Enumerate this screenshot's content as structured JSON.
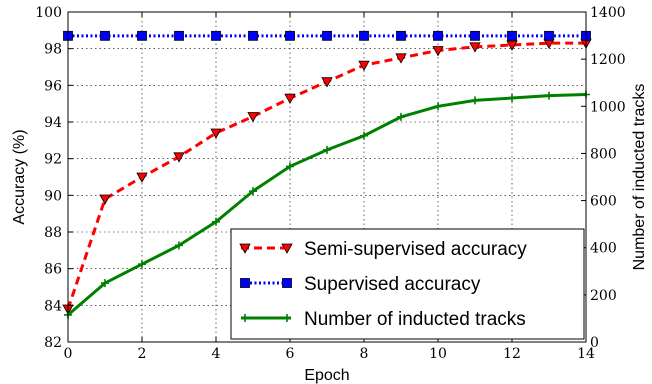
{
  "chart_data": {
    "type": "line",
    "xlabel": "Epoch",
    "ylabel_left": "Accuracy (%)",
    "ylabel_right": "Number of inducted tracks",
    "xlim": [
      0,
      14
    ],
    "ylim_left": [
      82,
      100
    ],
    "ylim_right": [
      0,
      1400
    ],
    "x_ticks": [
      0,
      2,
      4,
      6,
      8,
      10,
      12,
      14
    ],
    "y_left_ticks": [
      82,
      84,
      86,
      88,
      90,
      92,
      94,
      96,
      98,
      100
    ],
    "y_right_ticks": [
      0,
      200,
      400,
      600,
      800,
      1000,
      1200,
      1400
    ],
    "grid": true,
    "legend_position": "lower-right",
    "x": [
      0,
      1,
      2,
      3,
      4,
      5,
      6,
      7,
      8,
      9,
      10,
      11,
      12,
      13,
      14
    ],
    "series": [
      {
        "name": "Semi-supervised accuracy",
        "axis": "left",
        "color": "#ff0000",
        "marker": "triangle-down",
        "linestyle": "dashed",
        "values": [
          83.8,
          89.8,
          91.0,
          92.1,
          93.4,
          94.3,
          95.3,
          96.2,
          97.1,
          97.5,
          97.9,
          98.1,
          98.2,
          98.3,
          98.3
        ]
      },
      {
        "name": "Supervised accuracy",
        "axis": "left",
        "color": "#0000ff",
        "marker": "square",
        "linestyle": "dotted",
        "values": [
          98.7,
          98.7,
          98.7,
          98.7,
          98.7,
          98.7,
          98.7,
          98.7,
          98.7,
          98.7,
          98.7,
          98.7,
          98.7,
          98.7,
          98.7
        ]
      },
      {
        "name": "Number of inducted tracks",
        "axis": "right",
        "color": "#008000",
        "marker": "plus",
        "linestyle": "solid",
        "values": [
          115,
          250,
          330,
          410,
          510,
          640,
          745,
          815,
          875,
          955,
          1000,
          1025,
          1035,
          1045,
          1050
        ]
      }
    ]
  }
}
